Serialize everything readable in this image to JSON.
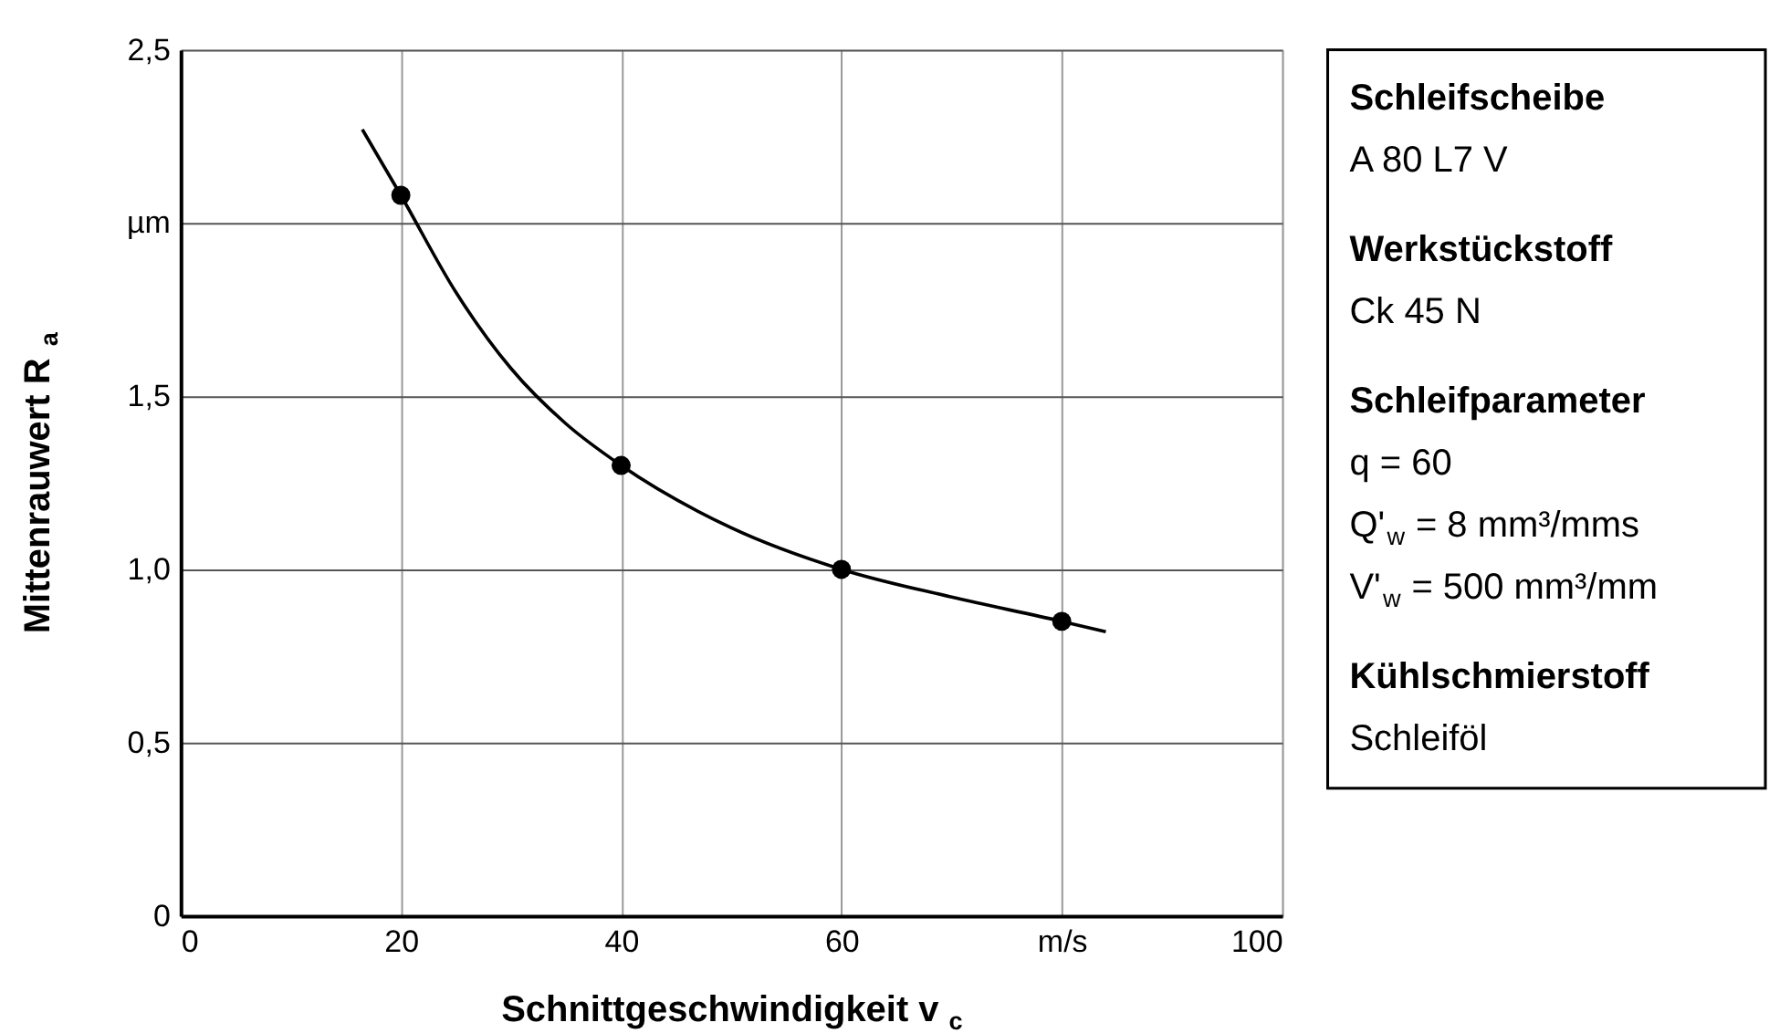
{
  "chart_data": [
    {
      "type": "scatter",
      "xlabel": "Schnittgeschwindigkeit v$_{c}$",
      "ylabel": "Mittenrauwert R$_{a}$",
      "xlim": [
        0,
        100
      ],
      "xticks": [
        0,
        20,
        40,
        60,
        {
          "value": 80,
          "label": "m/s"
        },
        100
      ],
      "ylim": [
        0,
        2.5
      ],
      "yticks": [
        0,
        {
          "value": 0.5,
          "label": "0,5"
        },
        {
          "value": 1.0,
          "label": "1,0"
        },
        {
          "value": 1.5,
          "label": "1,5"
        },
        {
          "value": 2.0,
          "label": "µm"
        },
        {
          "value": 2.5,
          "label": "2,5"
        }
      ],
      "grid": true,
      "series": [
        {
          "type": "line",
          "color": "#000000",
          "marker": "none",
          "line_style": "solid",
          "x": [
            16.5,
            20,
            25,
            30,
            35,
            40,
            50,
            60,
            70,
            80,
            84
          ],
          "values": [
            2.27,
            2.08,
            1.8,
            1.58,
            1.42,
            1.3,
            1.12,
            1.0,
            0.92,
            0.85,
            0.82
          ]
        },
        {
          "type": "scatter",
          "color": "#000000",
          "marker": "circle",
          "x": [
            20,
            40,
            60,
            80
          ],
          "values": [
            2.08,
            1.3,
            1.0,
            0.85
          ]
        }
      ]
    },
    {
      "type": "other",
      "annotations": [
        "Schleifscheibe",
        "A 80 L7 V",
        "Werkstückstoff",
        "Ck 45 N",
        "Schleifparameter",
        "q = 60",
        "Q'$_{w}$ = 8 mm³/mms",
        "V'$_{w}$ = 500 mm³/mm",
        "Kühlschmierstoff",
        "Schleiföl"
      ]
    }
  ]
}
